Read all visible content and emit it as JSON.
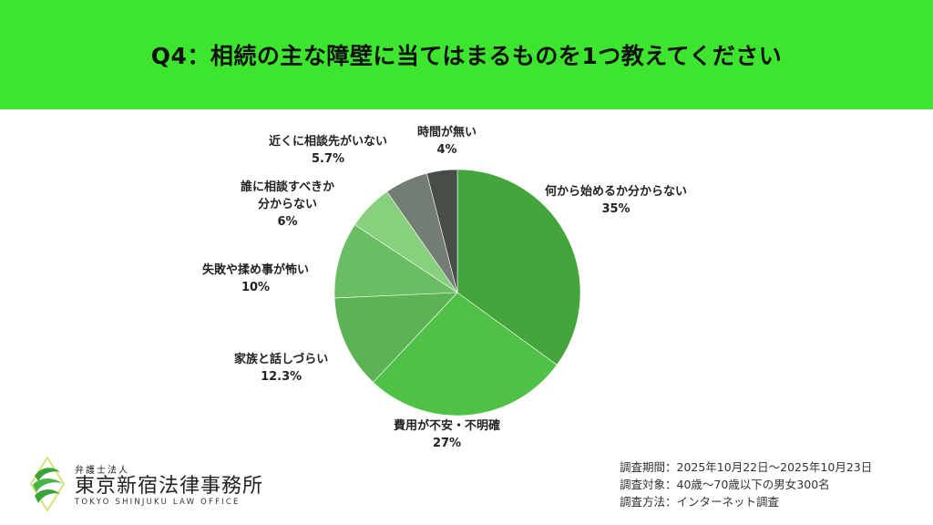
{
  "header": {
    "title": "Q4：相続の主な障壁に当てはまるものを1つ教えてください",
    "background": "#3de52e"
  },
  "chart_data": {
    "type": "pie",
    "title": "Q4：相続の主な障壁に当てはまるものを1つ教えてください",
    "start_angle_deg": 0,
    "direction": "clockwise",
    "slices": [
      {
        "label": "何から始めるか分からない",
        "value": 35,
        "display": "35%",
        "color": "#44a53c"
      },
      {
        "label": "費用が不安・不明確",
        "value": 27,
        "display": "27%",
        "color": "#4ec146"
      },
      {
        "label": "家族と話しづらい",
        "value": 12.3,
        "display": "12.3%",
        "color": "#5cb353"
      },
      {
        "label": "失敗や揉め事が怖い",
        "value": 10,
        "display": "10%",
        "color": "#6abd62"
      },
      {
        "label": "誰に相談すべきか分からない",
        "value": 6,
        "display": "6%",
        "color": "#86d07e"
      },
      {
        "label": "近くに相談先がいない",
        "value": 5.7,
        "display": "5.7%",
        "color": "#747d73"
      },
      {
        "label": "時間が無い",
        "value": 4,
        "display": "4%",
        "color": "#474d47"
      }
    ]
  },
  "labels": {
    "s0": {
      "line1": "何から始めるか分からない",
      "pct": "35%"
    },
    "s1": {
      "line1": "費用が不安・不明確",
      "pct": "27%"
    },
    "s2": {
      "line1": "家族と話しづらい",
      "pct": "12.3%"
    },
    "s3": {
      "line1": "失敗や揉め事が怖い",
      "pct": "10%"
    },
    "s4": {
      "line1": "誰に相談すべきか",
      "line2": "分からない",
      "pct": "6%"
    },
    "s5": {
      "line1": "近くに相談先がいない",
      "pct": "5.7%"
    },
    "s6": {
      "line1": "時間が無い",
      "pct": "4%"
    }
  },
  "logo": {
    "sub": "弁護士法人",
    "main": "東京新宿法律事務所",
    "en": "TOKYO SHINJUKU LAW OFFICE",
    "icon": "leaf-emblem-icon"
  },
  "survey": {
    "period": "調査期間：2025年10月22日〜2025年10月23日",
    "target": "調査対象：40歳〜70歳以下の男女300名",
    "method": "調査方法：インターネット調査"
  }
}
